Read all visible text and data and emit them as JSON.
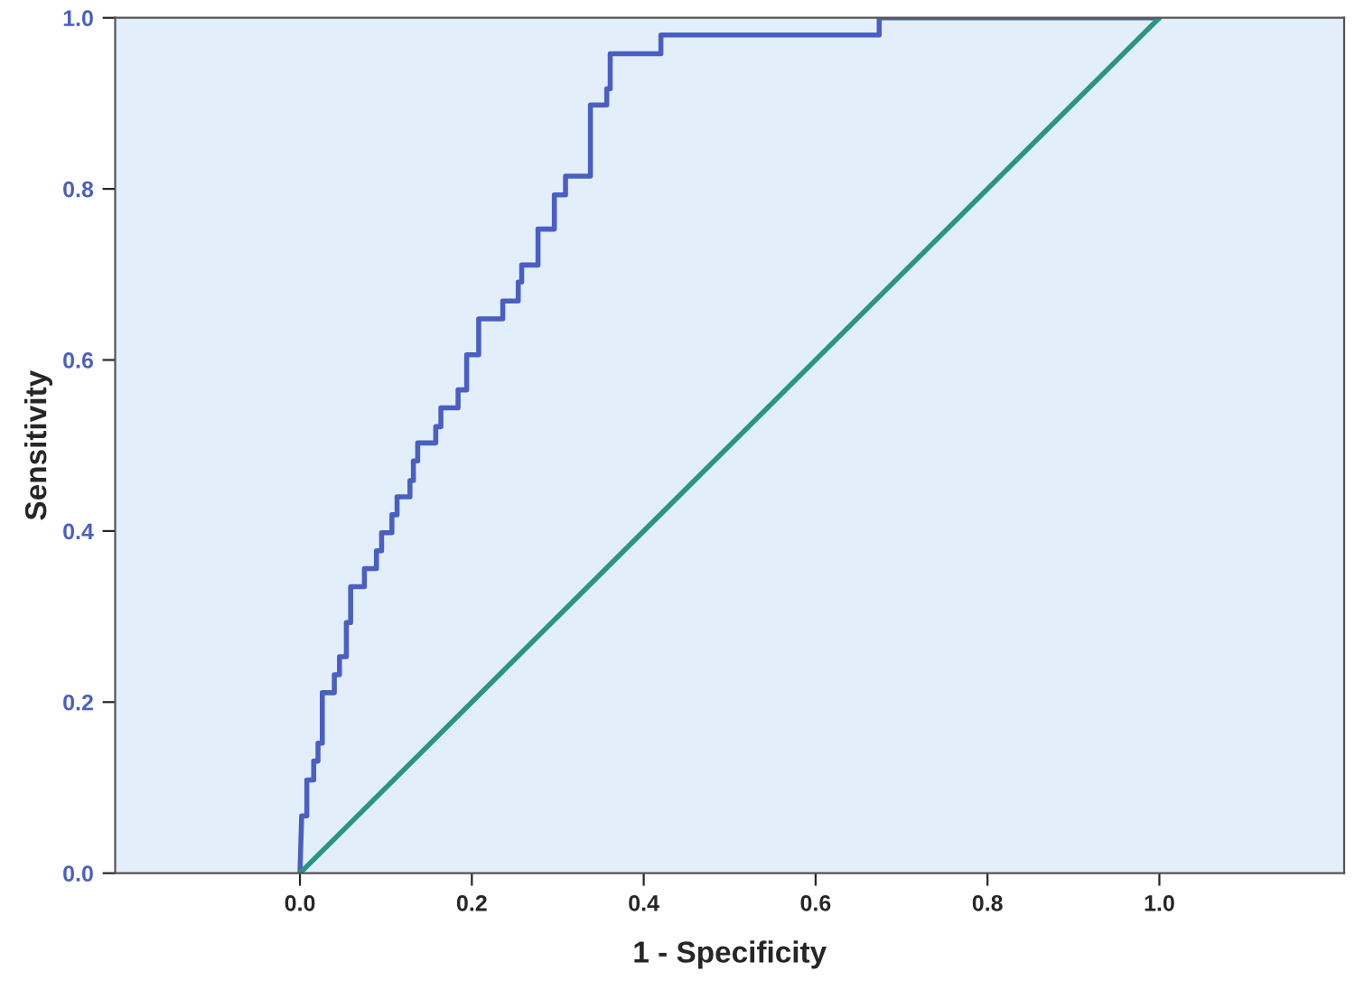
{
  "chart_data": {
    "type": "line",
    "xlabel": "1 - Specificity",
    "ylabel": "Sensitivity",
    "xlim": [
      -0.215,
      1.215
    ],
    "ylim": [
      0,
      1
    ],
    "xticks": [
      {
        "value": 0,
        "label": "0.0"
      },
      {
        "value": 0.2,
        "label": "0.2"
      },
      {
        "value": 0.4,
        "label": "0.4"
      },
      {
        "value": 0.6,
        "label": "0.6"
      },
      {
        "value": 0.8,
        "label": "0.8"
      },
      {
        "value": 1,
        "label": "1.0"
      }
    ],
    "yticks": [
      {
        "value": 0,
        "label": "0.0"
      },
      {
        "value": 0.2,
        "label": "0.2"
      },
      {
        "value": 0.4,
        "label": "0.4"
      },
      {
        "value": 0.6,
        "label": "0.6"
      },
      {
        "value": 0.8,
        "label": "0.8"
      },
      {
        "value": 1,
        "label": "1.0"
      }
    ],
    "grid": false,
    "legend": false,
    "marker": "none",
    "line_style": "solid",
    "series": [
      {
        "color": "#4a5fc1",
        "x": [
          0,
          0.002,
          0.008,
          0.008,
          0.016,
          0.016,
          0.021,
          0.021,
          0.026,
          0.026,
          0.04,
          0.04,
          0.046,
          0.046,
          0.054,
          0.054,
          0.059,
          0.059,
          0.075,
          0.075,
          0.089,
          0.089,
          0.095,
          0.095,
          0.107,
          0.107,
          0.113,
          0.113,
          0.128,
          0.128,
          0.132,
          0.132,
          0.137,
          0.137,
          0.158,
          0.158,
          0.164,
          0.164,
          0.184,
          0.184,
          0.194,
          0.194,
          0.208,
          0.208,
          0.236,
          0.236,
          0.254,
          0.254,
          0.258,
          0.258,
          0.277,
          0.277,
          0.296,
          0.296,
          0.309,
          0.309,
          0.338,
          0.338,
          0.357,
          0.357,
          0.361,
          0.361,
          0.42,
          0.42,
          0.674,
          0.674,
          1
        ],
        "values": [
          0,
          0.067,
          0.067,
          0.109,
          0.109,
          0.131,
          0.131,
          0.152,
          0.152,
          0.211,
          0.211,
          0.232,
          0.232,
          0.253,
          0.253,
          0.293,
          0.293,
          0.335,
          0.335,
          0.356,
          0.356,
          0.377,
          0.377,
          0.398,
          0.398,
          0.419,
          0.419,
          0.44,
          0.44,
          0.459,
          0.459,
          0.482,
          0.482,
          0.503,
          0.503,
          0.522,
          0.522,
          0.544,
          0.544,
          0.565,
          0.565,
          0.606,
          0.606,
          0.648,
          0.648,
          0.669,
          0.669,
          0.691,
          0.691,
          0.711,
          0.711,
          0.753,
          0.753,
          0.793,
          0.793,
          0.815,
          0.815,
          0.898,
          0.898,
          0.917,
          0.917,
          0.958,
          0.958,
          0.98,
          0.98,
          1,
          1
        ]
      },
      {
        "color": "#2a9580",
        "x": [
          0,
          1
        ],
        "values": [
          0,
          1
        ]
      }
    ]
  }
}
